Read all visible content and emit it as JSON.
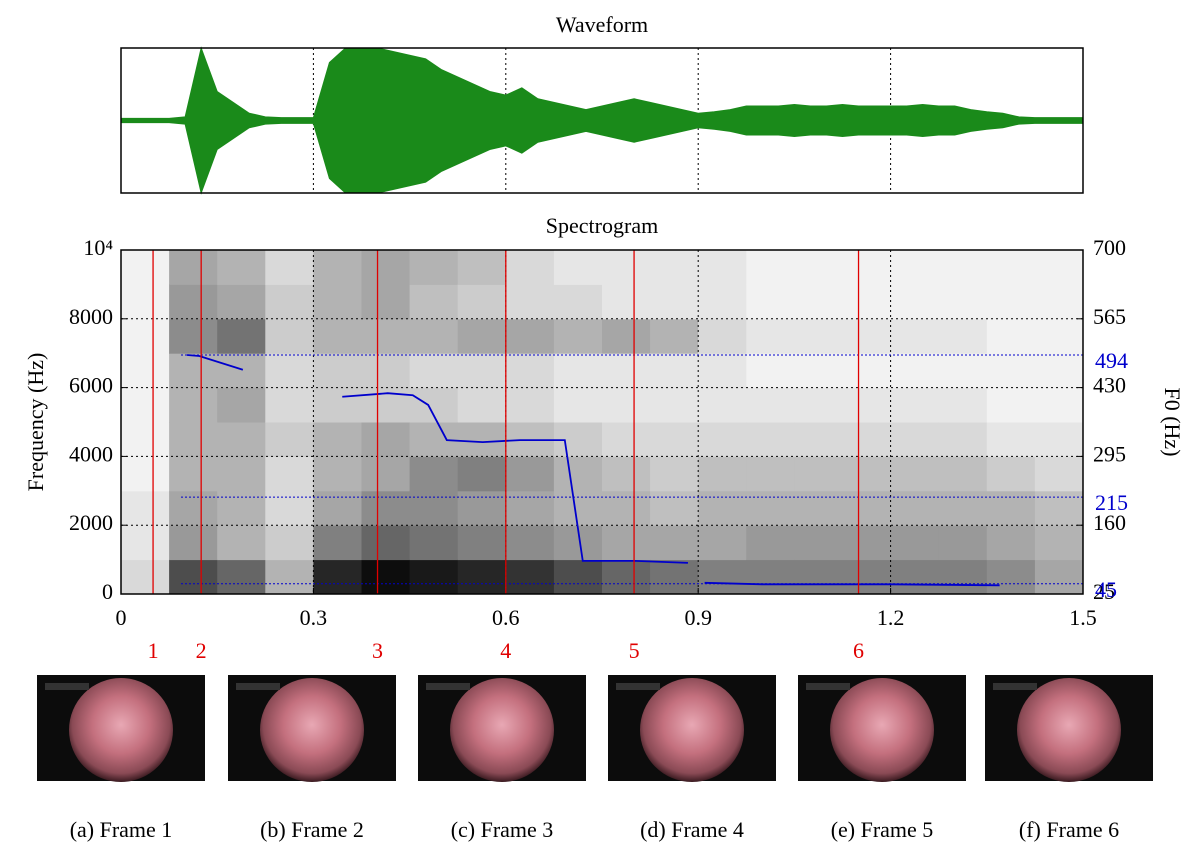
{
  "chart_data": [
    {
      "type": "area",
      "title": "Waveform",
      "color": "#1a8a1a",
      "xlim": [
        0,
        1.5
      ],
      "ylim": [
        -1,
        1
      ],
      "xticks": [
        0.3,
        0.6,
        0.9,
        1.2
      ],
      "grid": true,
      "x": [
        0,
        0.025,
        0.05,
        0.075,
        0.1,
        0.125,
        0.15,
        0.175,
        0.2,
        0.225,
        0.25,
        0.275,
        0.3,
        0.325,
        0.35,
        0.375,
        0.4,
        0.425,
        0.45,
        0.475,
        0.5,
        0.525,
        0.55,
        0.575,
        0.6,
        0.625,
        0.65,
        0.675,
        0.7,
        0.725,
        0.75,
        0.775,
        0.8,
        0.825,
        0.85,
        0.875,
        0.9,
        0.925,
        0.95,
        0.975,
        1.0,
        1.025,
        1.05,
        1.075,
        1.1,
        1.125,
        1.15,
        1.175,
        1.2,
        1.225,
        1.25,
        1.275,
        1.3,
        1.325,
        1.35,
        1.375,
        1.4,
        1.425,
        1.45,
        1.475,
        1.5
      ],
      "values": [
        0.03,
        0.03,
        0.03,
        0.03,
        0.05,
        1.0,
        0.4,
        0.25,
        0.1,
        0.05,
        0.04,
        0.04,
        0.04,
        0.8,
        1.0,
        1.0,
        1.0,
        0.95,
        0.9,
        0.85,
        0.7,
        0.6,
        0.5,
        0.4,
        0.35,
        0.45,
        0.3,
        0.25,
        0.2,
        0.15,
        0.2,
        0.25,
        0.3,
        0.25,
        0.2,
        0.15,
        0.1,
        0.12,
        0.15,
        0.2,
        0.2,
        0.2,
        0.22,
        0.2,
        0.2,
        0.22,
        0.2,
        0.2,
        0.2,
        0.2,
        0.22,
        0.2,
        0.2,
        0.15,
        0.12,
        0.1,
        0.05,
        0.04,
        0.04,
        0.04,
        0.04
      ]
    },
    {
      "type": "heatmap",
      "title": "Spectrogram",
      "ylabel": "Frequency (Hz)",
      "y2label": "F0 (Hz)",
      "xlim": [
        0,
        1.5
      ],
      "xticks": [
        0,
        0.3,
        0.6,
        0.9,
        1.2,
        1.5
      ],
      "ylim": [
        0,
        10000
      ],
      "yticks": [
        0,
        2000,
        4000,
        6000,
        8000,
        {
          "value": 10000,
          "label": "10⁴"
        }
      ],
      "y2lim": [
        25,
        700
      ],
      "y2ticks": [
        25,
        160,
        295,
        430,
        565,
        700
      ],
      "grid": true,
      "intensity": [
        [
          0.15,
          0.1,
          0.1,
          0.05,
          0.05,
          0.05,
          0.05,
          0.05,
          0.05,
          0.05
        ],
        [
          0.7,
          0.4,
          0.35,
          0.3,
          0.3,
          0.3,
          0.3,
          0.45,
          0.4,
          0.35
        ],
        [
          0.6,
          0.3,
          0.3,
          0.3,
          0.3,
          0.35,
          0.3,
          0.55,
          0.35,
          0.3
        ],
        [
          0.3,
          0.2,
          0.15,
          0.15,
          0.2,
          0.15,
          0.15,
          0.2,
          0.2,
          0.15
        ],
        [
          0.85,
          0.5,
          0.35,
          0.3,
          0.3,
          0.2,
          0.2,
          0.3,
          0.3,
          0.3
        ],
        [
          0.95,
          0.6,
          0.45,
          0.35,
          0.35,
          0.2,
          0.2,
          0.3,
          0.35,
          0.35
        ],
        [
          0.9,
          0.55,
          0.45,
          0.45,
          0.3,
          0.2,
          0.15,
          0.3,
          0.25,
          0.3
        ],
        [
          0.85,
          0.5,
          0.4,
          0.5,
          0.3,
          0.15,
          0.15,
          0.35,
          0.2,
          0.25
        ],
        [
          0.8,
          0.45,
          0.35,
          0.4,
          0.25,
          0.15,
          0.15,
          0.35,
          0.15,
          0.15
        ],
        [
          0.7,
          0.4,
          0.3,
          0.3,
          0.2,
          0.1,
          0.1,
          0.3,
          0.15,
          0.1
        ],
        [
          0.6,
          0.35,
          0.3,
          0.25,
          0.15,
          0.1,
          0.1,
          0.35,
          0.1,
          0.1
        ],
        [
          0.55,
          0.35,
          0.25,
          0.2,
          0.15,
          0.1,
          0.1,
          0.3,
          0.1,
          0.1
        ],
        [
          0.5,
          0.35,
          0.3,
          0.25,
          0.15,
          0.1,
          0.1,
          0.15,
          0.1,
          0.1
        ],
        [
          0.5,
          0.4,
          0.3,
          0.25,
          0.15,
          0.1,
          0.05,
          0.1,
          0.05,
          0.05
        ],
        [
          0.5,
          0.4,
          0.3,
          0.25,
          0.15,
          0.1,
          0.05,
          0.1,
          0.05,
          0.05
        ],
        [
          0.5,
          0.4,
          0.3,
          0.25,
          0.15,
          0.1,
          0.05,
          0.1,
          0.05,
          0.05
        ],
        [
          0.5,
          0.4,
          0.3,
          0.25,
          0.15,
          0.1,
          0.05,
          0.1,
          0.05,
          0.05
        ],
        [
          0.5,
          0.4,
          0.3,
          0.25,
          0.15,
          0.1,
          0.05,
          0.1,
          0.05,
          0.05
        ],
        [
          0.45,
          0.35,
          0.3,
          0.2,
          0.1,
          0.05,
          0.05,
          0.05,
          0.05,
          0.05
        ],
        [
          0.35,
          0.3,
          0.25,
          0.15,
          0.1,
          0.05,
          0.05,
          0.05,
          0.05,
          0.05
        ]
      ],
      "series": [
        {
          "name": "F0",
          "color": "#0000cc",
          "axis": "y2",
          "x": [
            0.103,
            0.122,
            0.19,
            null,
            0.345,
            0.416,
            0.455,
            0.479,
            0.508,
            0.564,
            0.622,
            0.692,
            0.72,
            0.8,
            0.884,
            null,
            0.91,
            1.0,
            1.2,
            1.37
          ],
          "values": [
            494,
            492,
            465,
            null,
            412,
            419,
            415,
            396,
            327,
            323,
            327,
            327,
            90,
            90,
            86,
            null,
            47,
            44,
            44,
            42
          ]
        }
      ],
      "f0_levels": {
        "color": "#0000cc",
        "values": [
          494,
          215,
          45
        ]
      },
      "frame_markers": {
        "color": "#e00000",
        "x": [
          0.05,
          0.125,
          0.4,
          0.6,
          0.8,
          1.15
        ],
        "labels": [
          "1",
          "2",
          "3",
          "4",
          "5",
          "6"
        ]
      }
    }
  ],
  "frames": {
    "captions": [
      "(a) Frame 1",
      "(b) Frame 2",
      "(c) Frame 3",
      "(d) Frame 4",
      "(e) Frame 5",
      "(f) Frame 6"
    ]
  }
}
